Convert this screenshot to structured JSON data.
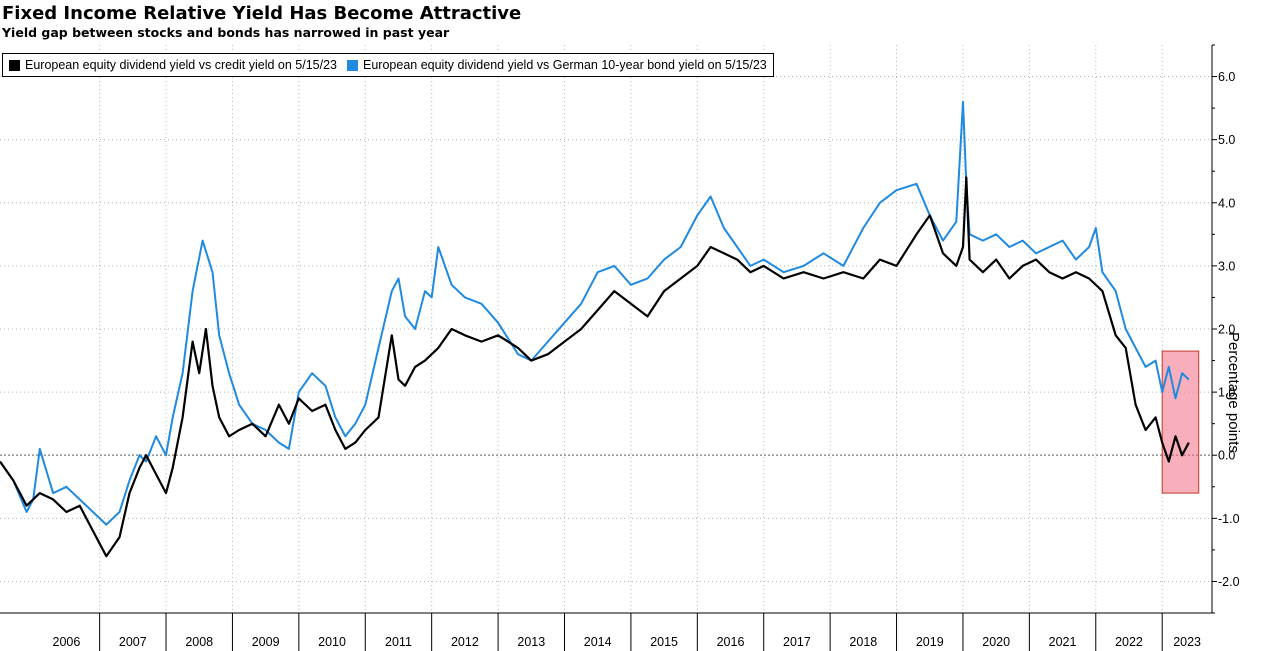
{
  "chart_data": {
    "type": "line",
    "title": "Fixed Income Relative Yield Has Become Attractive",
    "subtitle": "Yield gap between stocks and bonds has narrowed in past year",
    "ylabel": "Percentage points",
    "ylim": [
      -2.5,
      6.5
    ],
    "xlim": [
      2005.5,
      2023.75
    ],
    "yticks": [
      -2.0,
      -1.0,
      0.0,
      1.0,
      2.0,
      3.0,
      4.0,
      5.0,
      6.0
    ],
    "ytick_labels": [
      "-2.0",
      "-1.0",
      "0.0",
      "1.0",
      "2.0",
      "3.0",
      "4.0",
      "5.0",
      "6.0"
    ],
    "x_categories": [
      "2006",
      "2007",
      "2008",
      "2009",
      "2010",
      "2011",
      "2012",
      "2013",
      "2014",
      "2015",
      "2016",
      "2017",
      "2018",
      "2019",
      "2020",
      "2021",
      "2022",
      "2023"
    ],
    "grid": true,
    "legend_position": "top-left",
    "series": [
      {
        "name": "European equity dividend yield vs credit yield on 5/15/23",
        "color": "#000000",
        "x": [
          2005.5,
          2005.7,
          2005.9,
          2006.1,
          2006.3,
          2006.5,
          2006.7,
          2006.9,
          2007.1,
          2007.3,
          2007.45,
          2007.6,
          2007.7,
          2007.85,
          2008.0,
          2008.1,
          2008.25,
          2008.4,
          2008.5,
          2008.6,
          2008.7,
          2008.8,
          2008.95,
          2009.1,
          2009.3,
          2009.5,
          2009.7,
          2009.85,
          2010.0,
          2010.2,
          2010.4,
          2010.55,
          2010.7,
          2010.85,
          2011.0,
          2011.2,
          2011.4,
          2011.5,
          2011.6,
          2011.75,
          2011.9,
          2012.1,
          2012.3,
          2012.5,
          2012.75,
          2013.0,
          2013.3,
          2013.5,
          2013.75,
          2014.0,
          2014.25,
          2014.5,
          2014.75,
          2015.0,
          2015.25,
          2015.5,
          2015.75,
          2016.0,
          2016.2,
          2016.4,
          2016.6,
          2016.8,
          2017.0,
          2017.3,
          2017.6,
          2017.9,
          2018.2,
          2018.5,
          2018.75,
          2019.0,
          2019.3,
          2019.5,
          2019.7,
          2019.9,
          2020.0,
          2020.05,
          2020.1,
          2020.3,
          2020.5,
          2020.7,
          2020.9,
          2021.1,
          2021.3,
          2021.5,
          2021.7,
          2021.9,
          2022.1,
          2022.3,
          2022.45,
          2022.6,
          2022.75,
          2022.9,
          2023.0,
          2023.1,
          2023.2,
          2023.3,
          2023.4
        ],
        "values": [
          -0.1,
          -0.4,
          -0.8,
          -0.6,
          -0.7,
          -0.9,
          -0.8,
          -1.2,
          -1.6,
          -1.3,
          -0.6,
          -0.2,
          0.0,
          -0.3,
          -0.6,
          -0.2,
          0.6,
          1.8,
          1.3,
          2.0,
          1.1,
          0.6,
          0.3,
          0.4,
          0.5,
          0.3,
          0.8,
          0.5,
          0.9,
          0.7,
          0.8,
          0.4,
          0.1,
          0.2,
          0.4,
          0.6,
          1.9,
          1.2,
          1.1,
          1.4,
          1.5,
          1.7,
          2.0,
          1.9,
          1.8,
          1.9,
          1.7,
          1.5,
          1.6,
          1.8,
          2.0,
          2.3,
          2.6,
          2.4,
          2.2,
          2.6,
          2.8,
          3.0,
          3.3,
          3.2,
          3.1,
          2.9,
          3.0,
          2.8,
          2.9,
          2.8,
          2.9,
          2.8,
          3.1,
          3.0,
          3.5,
          3.8,
          3.2,
          3.0,
          3.3,
          4.4,
          3.1,
          2.9,
          3.1,
          2.8,
          3.0,
          3.1,
          2.9,
          2.8,
          2.9,
          2.8,
          2.6,
          1.9,
          1.7,
          0.8,
          0.4,
          0.6,
          0.2,
          -0.1,
          0.3,
          0.0,
          0.2
        ]
      },
      {
        "name": "European equity dividend yield vs German 10-year bond yield on 5/15/23",
        "color": "#1f8ae0",
        "x": [
          2005.5,
          2005.7,
          2005.9,
          2006.0,
          2006.1,
          2006.3,
          2006.5,
          2006.7,
          2006.9,
          2007.1,
          2007.3,
          2007.45,
          2007.6,
          2007.7,
          2007.85,
          2008.0,
          2008.1,
          2008.25,
          2008.4,
          2008.55,
          2008.7,
          2008.8,
          2008.95,
          2009.1,
          2009.3,
          2009.5,
          2009.7,
          2009.85,
          2010.0,
          2010.2,
          2010.4,
          2010.55,
          2010.7,
          2010.85,
          2011.0,
          2011.2,
          2011.4,
          2011.5,
          2011.6,
          2011.75,
          2011.9,
          2012.0,
          2012.1,
          2012.3,
          2012.5,
          2012.75,
          2013.0,
          2013.3,
          2013.5,
          2013.75,
          2014.0,
          2014.25,
          2014.5,
          2014.75,
          2015.0,
          2015.25,
          2015.5,
          2015.75,
          2016.0,
          2016.2,
          2016.4,
          2016.6,
          2016.8,
          2017.0,
          2017.3,
          2017.6,
          2017.9,
          2018.2,
          2018.5,
          2018.75,
          2019.0,
          2019.3,
          2019.5,
          2019.7,
          2019.9,
          2020.0,
          2020.05,
          2020.1,
          2020.3,
          2020.5,
          2020.7,
          2020.9,
          2021.1,
          2021.3,
          2021.5,
          2021.7,
          2021.9,
          2022.0,
          2022.1,
          2022.3,
          2022.45,
          2022.6,
          2022.75,
          2022.9,
          2023.0,
          2023.1,
          2023.2,
          2023.3,
          2023.4
        ],
        "values": [
          -0.1,
          -0.4,
          -0.9,
          -0.7,
          0.1,
          -0.6,
          -0.5,
          -0.7,
          -0.9,
          -1.1,
          -0.9,
          -0.4,
          0.0,
          -0.1,
          0.3,
          0.0,
          0.6,
          1.3,
          2.6,
          3.4,
          2.9,
          1.9,
          1.3,
          0.8,
          0.5,
          0.4,
          0.2,
          0.1,
          1.0,
          1.3,
          1.1,
          0.6,
          0.3,
          0.5,
          0.8,
          1.7,
          2.6,
          2.8,
          2.2,
          2.0,
          2.6,
          2.5,
          3.3,
          2.7,
          2.5,
          2.4,
          2.1,
          1.6,
          1.5,
          1.8,
          2.1,
          2.4,
          2.9,
          3.0,
          2.7,
          2.8,
          3.1,
          3.3,
          3.8,
          4.1,
          3.6,
          3.3,
          3.0,
          3.1,
          2.9,
          3.0,
          3.2,
          3.0,
          3.6,
          4.0,
          4.2,
          4.3,
          3.8,
          3.4,
          3.7,
          5.6,
          4.3,
          3.5,
          3.4,
          3.5,
          3.3,
          3.4,
          3.2,
          3.3,
          3.4,
          3.1,
          3.3,
          3.6,
          2.9,
          2.6,
          2.0,
          1.7,
          1.4,
          1.5,
          1.0,
          1.4,
          0.9,
          1.3,
          1.2
        ]
      }
    ],
    "annotations": [
      {
        "type": "zero-line",
        "y": 0.0,
        "style": "dotted"
      },
      {
        "type": "highlight-box",
        "x": [
          2023.0,
          2023.55
        ],
        "y": [
          -0.6,
          1.65
        ],
        "color": "#f26d83"
      }
    ]
  }
}
